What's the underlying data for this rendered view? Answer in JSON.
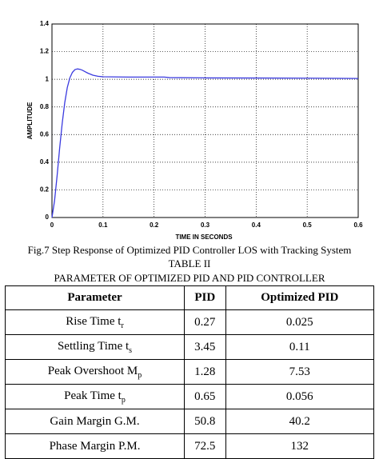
{
  "chart_data": {
    "type": "line",
    "xlabel": "TIME IN SECONDS",
    "ylabel": "AMPLITUDE",
    "x": [
      0,
      0.005,
      0.01,
      0.015,
      0.02,
      0.025,
      0.03,
      0.035,
      0.04,
      0.045,
      0.05,
      0.055,
      0.06,
      0.065,
      0.07,
      0.08,
      0.09,
      0.1,
      0.15,
      0.2,
      0.22,
      0.23,
      0.3,
      0.4,
      0.5,
      0.6
    ],
    "series": [
      {
        "color": "#3a3adf",
        "values": [
          0,
          0.12,
          0.3,
          0.5,
          0.68,
          0.83,
          0.94,
          1.01,
          1.05,
          1.07,
          1.075,
          1.072,
          1.065,
          1.055,
          1.045,
          1.03,
          1.022,
          1.018,
          1.016,
          1.016,
          1.016,
          1.012,
          1.01,
          1.009,
          1.008,
          1.006
        ]
      }
    ],
    "xlim": [
      0,
      0.6
    ],
    "xticks": [
      0,
      0.1,
      0.2,
      0.3,
      0.4,
      0.5,
      0.6
    ],
    "ylim": [
      0,
      1.4
    ],
    "yticks": [
      0,
      0.2,
      0.4,
      0.6,
      0.8,
      1,
      1.2,
      1.4
    ],
    "grid": true
  },
  "caption": "Fig.7 Step Response of Optimized PID Controller LOS with Tracking System",
  "table_label": "TABLE II",
  "table_title": "PARAMETER OF OPTIMIZED PID AND PID CONTROLLER",
  "table": {
    "header": [
      "Parameter",
      "PID",
      "Optimized PID"
    ],
    "rows": [
      [
        {
          "text": "Rise Time t",
          "sub": "r"
        },
        0.27,
        0.025
      ],
      [
        {
          "text": "Settling Time t",
          "sub": "s"
        },
        3.45,
        0.11
      ],
      [
        {
          "text": "Peak Overshoot M",
          "sub": "p"
        },
        1.28,
        7.53
      ],
      [
        {
          "text": "Peak Time t",
          "sub": "p"
        },
        0.65,
        0.056
      ],
      [
        {
          "text": "Gain Margin G.M."
        },
        50.8,
        40.2
      ],
      [
        {
          "text": "Phase Margin P.M."
        },
        72.5,
        132
      ]
    ]
  }
}
